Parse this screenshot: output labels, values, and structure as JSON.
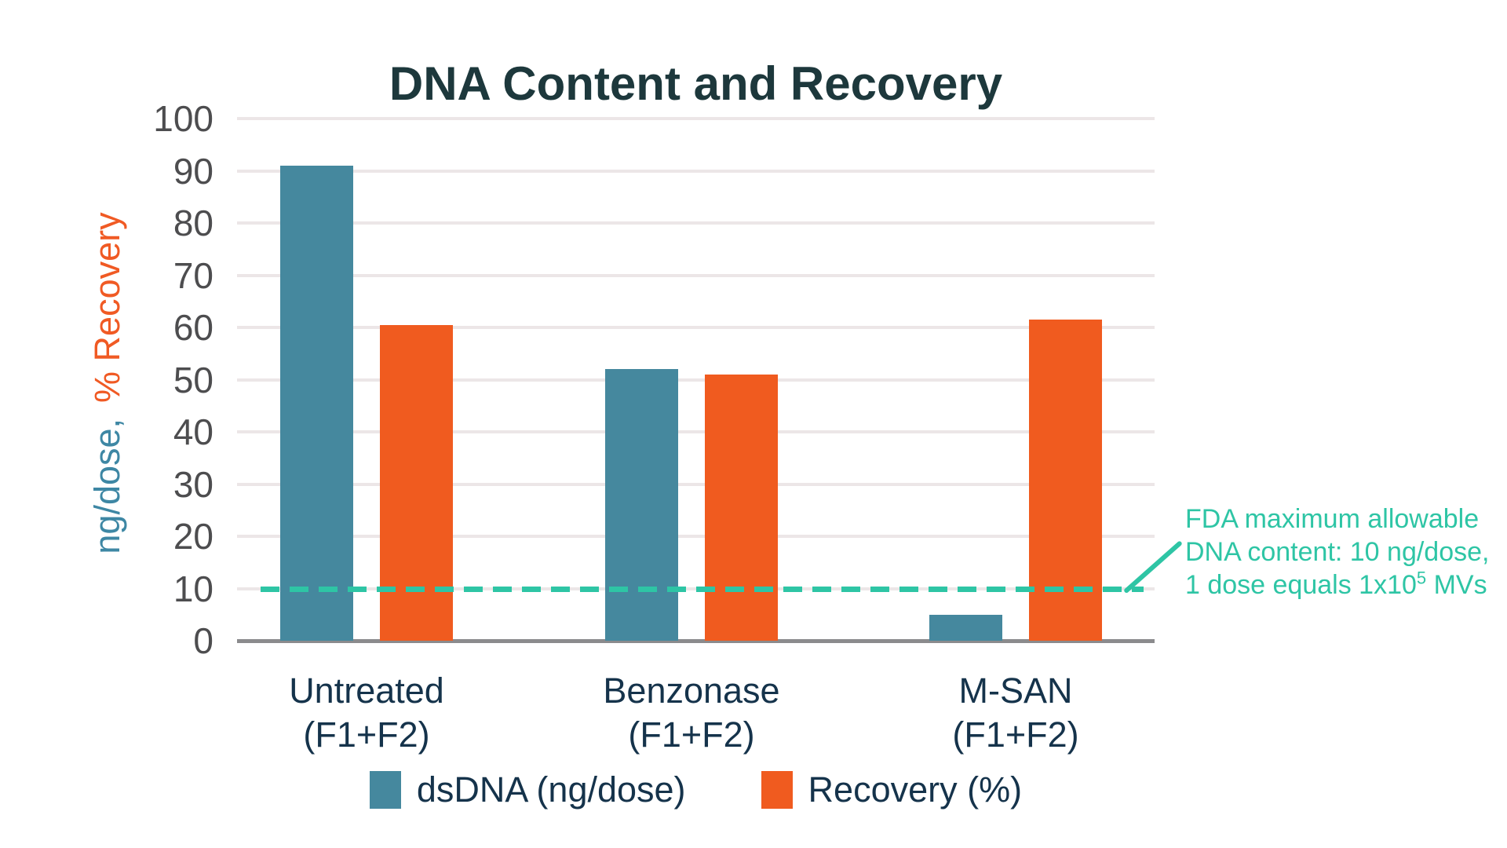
{
  "title": "DNA Content and Recovery",
  "y_axis": {
    "label_primary": "ng/dose,",
    "label_secondary": "% Recovery",
    "label_primary_color": "#3e87a4",
    "label_secondary_color": "#f05a24",
    "ticks": [
      100,
      90,
      80,
      70,
      60,
      50,
      40,
      30,
      20,
      10,
      0
    ]
  },
  "chart_data": {
    "type": "bar",
    "title": "DNA Content and Recovery",
    "categories": [
      {
        "line1": "Untreated",
        "line2": "(F1+F2)"
      },
      {
        "line1": "Benzonase",
        "line2": "(F1+F2)"
      },
      {
        "line1": "M-SAN",
        "line2": "(F1+F2)"
      }
    ],
    "series": [
      {
        "name": "dsDNA (ng/dose)",
        "key": "dsdna",
        "color": "#45889e",
        "values": [
          91,
          52,
          5
        ]
      },
      {
        "name": "Recovery (%)",
        "key": "recovery",
        "color": "#f05b1f",
        "values": [
          60.5,
          51,
          61.5
        ]
      }
    ],
    "ylim": [
      0,
      100
    ],
    "ytick_step": 10,
    "grid": "horizontal",
    "legend_position": "bottom",
    "threshold_line": {
      "value": 10,
      "color": "#2ec5a5",
      "style": "dashed"
    }
  },
  "annotation": {
    "line1": "FDA maximum allowable",
    "line2": "DNA content: 10 ng/dose,",
    "line3_prefix": "1 dose equals 1x10",
    "line3_sup": "5",
    "line3_suffix": " MVs"
  },
  "colors": {
    "title_text": "#1d383c",
    "axis_tick_text": "#4d4d4f",
    "category_text": "#15334b",
    "gridline": "#ece6e7",
    "axis_line": "#8b8b8d",
    "background": "#ffffff"
  }
}
